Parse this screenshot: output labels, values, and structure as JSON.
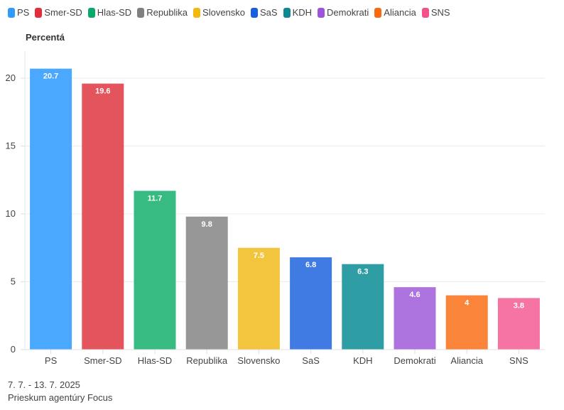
{
  "chart_data": {
    "type": "bar",
    "ylabel": "Percentá",
    "categories": [
      "PS",
      "Smer-SD",
      "Hlas-SD",
      "Republika",
      "Slovensko",
      "SaS",
      "KDH",
      "Demokrati",
      "Aliancia",
      "SNS"
    ],
    "values": [
      20.7,
      19.6,
      11.7,
      9.8,
      7.5,
      6.8,
      6.3,
      4.6,
      4,
      3.8
    ],
    "data_labels": [
      "20.7",
      "19.6",
      "11.7",
      "9.8",
      "7.5",
      "6.8",
      "6.3",
      "4.6",
      "4",
      "3.8"
    ],
    "colors": [
      "#4aa8ff",
      "#e3545c",
      "#38bb82",
      "#979797",
      "#f3c43d",
      "#3f7be3",
      "#2f9ea4",
      "#ad74e0",
      "#f9843a",
      "#f674a4"
    ],
    "legend_colors": [
      "#2f9bff",
      "#e32e3a",
      "#0aa86a",
      "#808080",
      "#f2b90e",
      "#175ee0",
      "#0b8a91",
      "#9a55d9",
      "#f96a10",
      "#f4528c"
    ],
    "yticks": [
      "0",
      "5",
      "10",
      "15",
      "20"
    ],
    "ylim": [
      0,
      21.5
    ],
    "grid": true,
    "legend": "top-left"
  },
  "footer": {
    "date": "7. 7. - 13. 7. 2025",
    "source": "Prieskum agentúry Focus"
  }
}
